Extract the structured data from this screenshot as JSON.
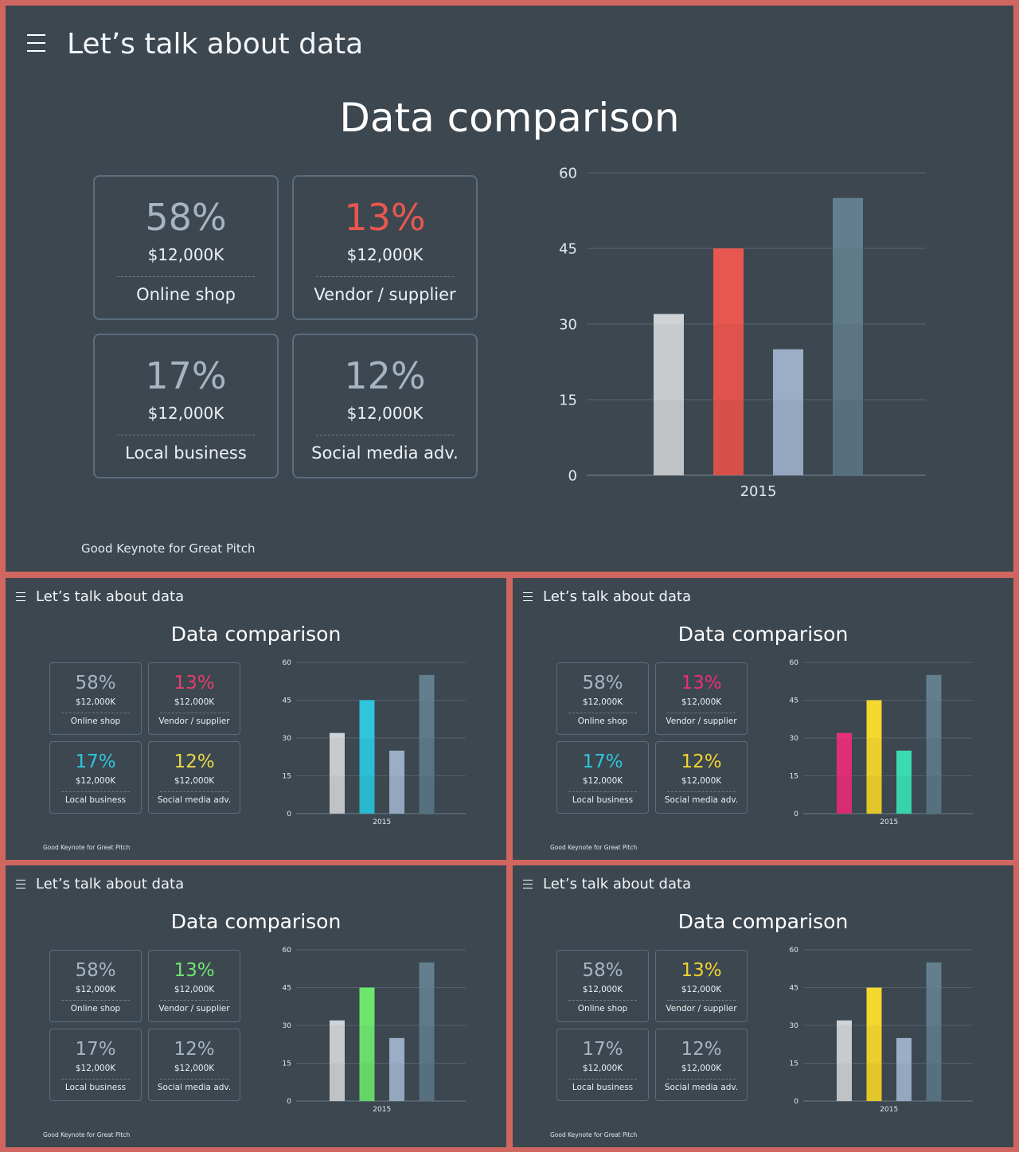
{
  "header": {
    "title": "Let’s talk about data",
    "menu_icon": "hamburger-menu-icon"
  },
  "slide_title": "Data comparison",
  "footer": "Good Keynote for Great Pitch",
  "cards": [
    {
      "pct": "58%",
      "amount": "$12,000K",
      "label": "Online shop"
    },
    {
      "pct": "13%",
      "amount": "$12,000K",
      "label": "Vendor / supplier"
    },
    {
      "pct": "17%",
      "amount": "$12,000K",
      "label": "Local business"
    },
    {
      "pct": "12%",
      "amount": "$12,000K",
      "label": "Social media adv."
    }
  ],
  "colors": {
    "background": "#3c4750",
    "frame": "#cf6660",
    "default_pct": "#a7b4c1"
  },
  "slides": [
    {
      "id": "main",
      "pct_colors": [
        "#a7b4c1",
        "#e8574f",
        "#a7b4c1",
        "#a7b4c1"
      ],
      "bar_colors": [
        "#cfd3d6",
        "#e8574f",
        "#9aaec6",
        "#637f8f"
      ]
    },
    {
      "id": "s1",
      "pct_colors": [
        "#a7b4c1",
        "#e83e6c",
        "#2fc5dd",
        "#e8d94a"
      ],
      "bar_colors": [
        "#cfd3d6",
        "#2fc5dd",
        "#9aaec6",
        "#637f8f"
      ]
    },
    {
      "id": "s2",
      "pct_colors": [
        "#a7b4c1",
        "#e8307a",
        "#2fc5dd",
        "#f2d430"
      ],
      "bar_colors": [
        "#e8307a",
        "#f5d72e",
        "#3bdbb0",
        "#637f8f"
      ]
    },
    {
      "id": "s3",
      "pct_colors": [
        "#a7b4c1",
        "#6ee66e",
        "#a7b4c1",
        "#a7b4c1"
      ],
      "bar_colors": [
        "#cfd3d6",
        "#6ee66e",
        "#9aaec6",
        "#637f8f"
      ]
    },
    {
      "id": "s4",
      "pct_colors": [
        "#a7b4c1",
        "#f2d430",
        "#a7b4c1",
        "#a7b4c1"
      ],
      "bar_colors": [
        "#cfd3d6",
        "#f5d72e",
        "#9aaec6",
        "#637f8f"
      ]
    }
  ],
  "chart_data": {
    "type": "bar",
    "categories": [
      "2015"
    ],
    "series": [
      {
        "values": [
          32
        ]
      },
      {
        "values": [
          45
        ]
      },
      {
        "values": [
          25
        ]
      },
      {
        "values": [
          55
        ]
      }
    ],
    "ylim": [
      0,
      60
    ],
    "yticks": [
      0,
      15,
      30,
      45,
      60
    ],
    "xlabel": "",
    "ylabel": "",
    "grid": true
  }
}
